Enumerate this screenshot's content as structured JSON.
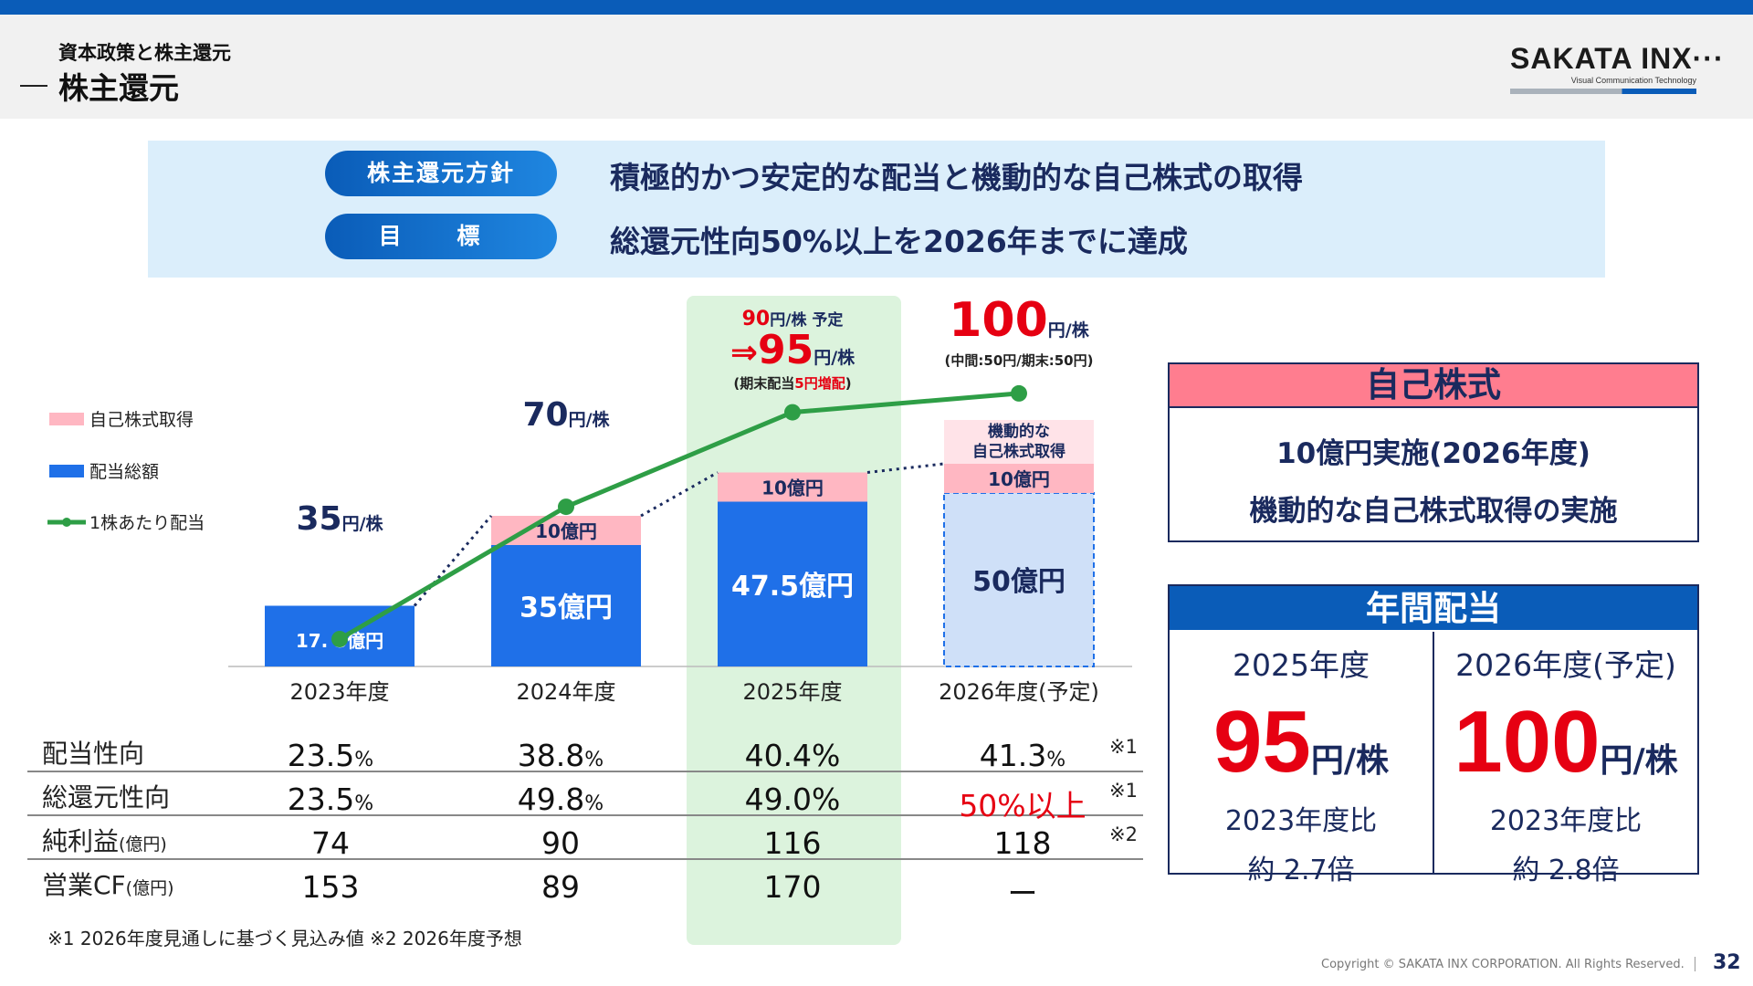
{
  "header": {
    "section": "資本政策と株主還元",
    "title": "株主還元",
    "logo_main": "SAKATA INX···",
    "logo_tagline": "Visual Communication Technology"
  },
  "policy": {
    "label1": "株主還元方針",
    "text1": "積極的かつ安定的な配当と機動的な自己株式の取得",
    "label2": "目 標",
    "text2": "総還元性向50%以上を2026年までに達成"
  },
  "legend": {
    "buyback": "自己株式取得",
    "dividend_total": "配当総額",
    "dps": "1株あたり配当"
  },
  "colors": {
    "dividend_bar": "#1f70e8",
    "buyback_bar": "#ffb7c2",
    "dps_line": "#2e9e46",
    "highlight": "#dcf3dd",
    "accent_red": "#e60012",
    "navy": "#1a2a5e"
  },
  "chart_data": {
    "type": "bar",
    "categories": [
      "2023年度",
      "2024年度",
      "2025年度",
      "2026年度(予定)"
    ],
    "series": [
      {
        "name": "配当総額",
        "values": [
          17.5,
          35,
          47.5,
          50
        ]
      },
      {
        "name": "自己株式取得",
        "values": [
          0,
          10,
          10,
          10
        ]
      },
      {
        "name": "1株あたり配当",
        "values": [
          35,
          70,
          95,
          100
        ]
      }
    ],
    "bar_labels": {
      "dividend": [
        "17. 5億円",
        "35億円",
        "47.5億円",
        "50億円"
      ],
      "buyback": [
        "",
        "10億円",
        "10億円",
        "10億円"
      ],
      "buyback_note_2026": "機動的な自己株式取得"
    },
    "dps_labels": [
      {
        "num": "35",
        "unit": "円/株"
      },
      {
        "num": "70",
        "unit": "円/株"
      },
      {
        "num": "95",
        "unit": "円/株"
      },
      {
        "num": "100",
        "unit": "円/株"
      }
    ],
    "annotation_2025": {
      "line1_num": "90",
      "line1_unit": "円/株 予定",
      "arrow": "⇒",
      "note_pre": "(期末配当",
      "note_red": "5円増配",
      "note_post": ")"
    },
    "annotation_2026": "(中間:50円/期末:50円)"
  },
  "table": {
    "rows": [
      {
        "label": "配当性向",
        "label_unit": "",
        "values": [
          "23.5",
          "38.8",
          "40.4%",
          "41.3"
        ],
        "units": [
          "%",
          "%",
          "",
          "%"
        ],
        "note": "※1"
      },
      {
        "label": "総還元性向",
        "label_unit": "",
        "values": [
          "23.5",
          "49.8",
          "49.0%",
          "50%以上"
        ],
        "units": [
          "%",
          "%",
          "",
          ""
        ],
        "note": "※1"
      },
      {
        "label": "純利益",
        "label_unit": "(億円)",
        "values": [
          "74",
          "90",
          "116",
          "118"
        ],
        "units": [
          "",
          "",
          "",
          ""
        ],
        "note": "※2"
      },
      {
        "label": "営業CF",
        "label_unit": "(億円)",
        "values": [
          "153",
          "89",
          "170",
          "ー"
        ],
        "units": [
          "",
          "",
          "",
          ""
        ],
        "note": ""
      }
    ],
    "footnote": "※1 2026年度見通しに基づく見込み値 ※2 2026年度予想"
  },
  "buyback_box": {
    "title": "自己株式",
    "line1": "10億円実施(2026年度)",
    "line2": "機動的な自己株式取得の実施"
  },
  "dividend_box": {
    "title": "年間配当",
    "col1": {
      "year": "2025年度",
      "value": "95",
      "unit": "円/株",
      "compare": "2023年度比",
      "multiple": "約 2.7倍"
    },
    "col2": {
      "year": "2026年度(予定)",
      "value": "100",
      "unit": "円/株",
      "compare": "2023年度比",
      "multiple": "約 2.8倍"
    }
  },
  "footer": {
    "copyright": "Copyright © SAKATA INX CORPORATION. All Rights Reserved.",
    "page": "32"
  }
}
